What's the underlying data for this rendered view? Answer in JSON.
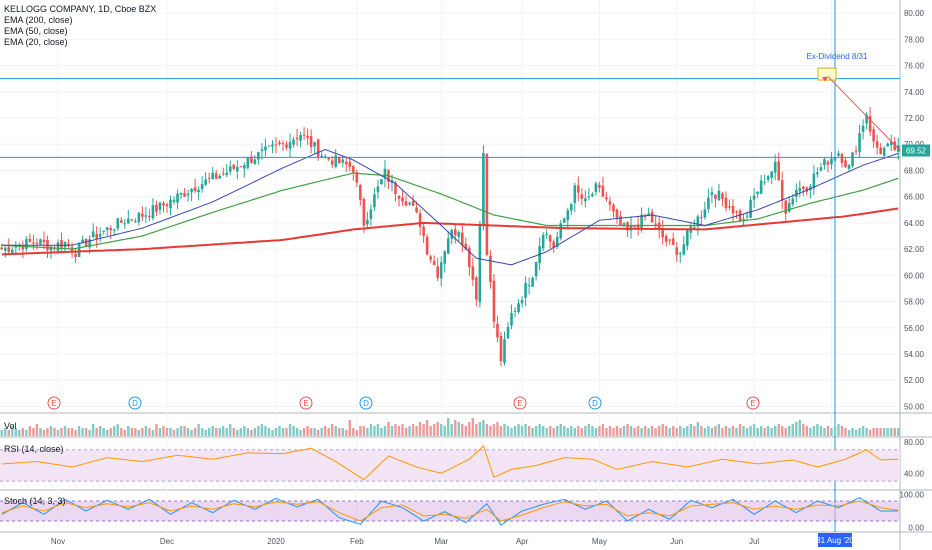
{
  "header": {
    "title": "KELLOGG COMPANY, 1D, Cboe BZX",
    "indicators": [
      "EMA (200, close)",
      "EMA (50, close)",
      "EMA (20, close)"
    ]
  },
  "panes": {
    "volume_label": "Vol",
    "rsi_label": "RSI (14, close)",
    "stoch_label": "Stoch (14, 3, 3)"
  },
  "colors": {
    "up": "#26a69a",
    "down": "#ef5350",
    "ema200": "#e53935",
    "ema50": "#43a047",
    "ema20": "#3949ab",
    "hline": "#2196f3",
    "rsi": "#ff9800",
    "stoch_k": "#2196f3",
    "stoch_d": "#ff9800",
    "band": "#e1bee7"
  },
  "annotation": {
    "label": "Ex-Dividend 8/31",
    "date_badge": "31 Aug '20",
    "target_price": 75.2
  },
  "last_price_label": "69.52",
  "events": [
    {
      "type": "E",
      "month": "Oct"
    },
    {
      "type": "D",
      "month": "Nov"
    },
    {
      "type": "E",
      "month": "Jan"
    },
    {
      "type": "D",
      "month": "Feb"
    },
    {
      "type": "E",
      "month": "Apr"
    },
    {
      "type": "D",
      "month": "May"
    },
    {
      "type": "E",
      "month": "Jul"
    }
  ],
  "chart_data": {
    "type": "candlestick",
    "title": "KELLOGG COMPANY, 1D, Cboe BZX",
    "x_ticks": [
      "Nov",
      "Dec",
      "2020",
      "Feb",
      "Mar",
      "Apr",
      "May",
      "Jun",
      "Jul",
      "Aug"
    ],
    "y_ticks": [
      "80.00",
      "78.00",
      "76.00",
      "74.00",
      "72.00",
      "70.00",
      "68.00",
      "66.00",
      "64.00",
      "62.00",
      "60.00",
      "58.00",
      "56.00",
      "54.00",
      "52.00",
      "50.00"
    ],
    "ylim": [
      49.5,
      81
    ],
    "horizontal_lines": [
      75.0,
      69.0
    ],
    "close_series": [
      [
        0,
        62.0
      ],
      [
        5,
        62.3
      ],
      [
        10,
        62.6
      ],
      [
        14,
        62.2
      ],
      [
        18,
        62.5
      ],
      [
        21,
        61.8
      ],
      [
        25,
        62.8
      ],
      [
        30,
        63.5
      ],
      [
        35,
        64.2
      ],
      [
        40,
        64.6
      ],
      [
        45,
        65.2
      ],
      [
        50,
        66.0
      ],
      [
        55,
        66.8
      ],
      [
        60,
        67.4
      ],
      [
        65,
        68.0
      ],
      [
        70,
        68.8
      ],
      [
        75,
        69.4
      ],
      [
        80,
        70.0
      ],
      [
        85,
        70.8
      ],
      [
        88,
        70.0
      ],
      [
        92,
        69.0
      ],
      [
        96,
        68.6
      ],
      [
        100,
        68.2
      ],
      [
        103,
        64.0
      ],
      [
        106,
        66.0
      ],
      [
        109,
        67.8
      ],
      [
        112,
        66.5
      ],
      [
        116,
        65.5
      ],
      [
        119,
        64.0
      ],
      [
        121,
        62.0
      ],
      [
        124,
        60.2
      ],
      [
        127,
        63.0
      ],
      [
        130,
        63.6
      ],
      [
        133,
        61.0
      ],
      [
        135,
        58.5
      ],
      [
        137,
        69.4
      ],
      [
        138,
        62.0
      ],
      [
        140,
        56.5
      ],
      [
        142,
        53.6
      ],
      [
        145,
        57.0
      ],
      [
        148,
        58.5
      ],
      [
        151,
        60.2
      ],
      [
        154,
        63.5
      ],
      [
        157,
        62.2
      ],
      [
        160,
        64.3
      ],
      [
        163,
        66.5
      ],
      [
        166,
        65.5
      ],
      [
        169,
        66.6
      ],
      [
        172,
        65.8
      ],
      [
        175,
        64.0
      ],
      [
        178,
        63.3
      ],
      [
        181,
        64.0
      ],
      [
        184,
        64.6
      ],
      [
        187,
        63.2
      ],
      [
        190,
        62.3
      ],
      [
        193,
        61.8
      ],
      [
        196,
        63.6
      ],
      [
        199,
        64.7
      ],
      [
        202,
        66.5
      ],
      [
        205,
        65.8
      ],
      [
        208,
        65.0
      ],
      [
        211,
        64.1
      ],
      [
        214,
        66.0
      ],
      [
        217,
        67.4
      ],
      [
        220,
        68.3
      ],
      [
        223,
        65.0
      ],
      [
        226,
        66.6
      ],
      [
        229,
        66.8
      ],
      [
        232,
        67.9
      ],
      [
        235,
        68.8
      ],
      [
        238,
        69.4
      ],
      [
        241,
        68.2
      ],
      [
        244,
        70.8
      ],
      [
        246,
        72.4
      ],
      [
        248,
        70.0
      ],
      [
        250,
        69.5
      ],
      [
        253,
        69.8
      ],
      [
        255,
        69.52
      ]
    ],
    "ema200": [
      [
        0,
        61.6
      ],
      [
        40,
        62.0
      ],
      [
        80,
        62.7
      ],
      [
        100,
        63.5
      ],
      [
        120,
        64.0
      ],
      [
        160,
        63.6
      ],
      [
        200,
        63.5
      ],
      [
        240,
        64.5
      ],
      [
        255,
        65.1
      ]
    ],
    "ema50": [
      [
        0,
        62.3
      ],
      [
        20,
        62.0
      ],
      [
        40,
        63.0
      ],
      [
        60,
        64.8
      ],
      [
        80,
        66.5
      ],
      [
        100,
        67.8
      ],
      [
        110,
        67.6
      ],
      [
        125,
        66.2
      ],
      [
        140,
        64.6
      ],
      [
        155,
        63.8
      ],
      [
        175,
        63.8
      ],
      [
        200,
        63.8
      ],
      [
        215,
        64.3
      ],
      [
        230,
        65.5
      ],
      [
        245,
        66.5
      ],
      [
        255,
        67.4
      ]
    ],
    "ema20": [
      [
        0,
        62.3
      ],
      [
        20,
        62.3
      ],
      [
        40,
        63.6
      ],
      [
        60,
        65.6
      ],
      [
        80,
        68.2
      ],
      [
        92,
        69.6
      ],
      [
        100,
        68.8
      ],
      [
        112,
        67.0
      ],
      [
        125,
        63.8
      ],
      [
        135,
        61.3
      ],
      [
        145,
        60.8
      ],
      [
        155,
        61.8
      ],
      [
        170,
        64.2
      ],
      [
        185,
        64.6
      ],
      [
        200,
        63.8
      ],
      [
        215,
        65.0
      ],
      [
        230,
        66.6
      ],
      [
        245,
        68.4
      ],
      [
        255,
        69.3
      ]
    ],
    "volume": [
      3,
      4,
      3,
      5,
      4,
      3,
      4,
      3,
      5,
      4,
      6,
      4,
      3,
      4,
      5,
      4,
      3,
      4,
      5,
      4,
      4,
      3,
      5,
      4,
      4,
      3,
      6,
      4,
      5,
      4,
      3,
      4,
      5,
      6,
      4,
      3,
      5,
      4,
      4,
      3,
      4,
      5,
      4,
      3,
      6,
      4,
      5,
      4,
      4,
      3,
      4,
      5,
      5,
      4,
      3,
      4,
      6,
      4,
      3,
      4,
      5,
      4,
      4,
      5,
      4,
      6,
      4,
      3,
      4,
      5,
      4,
      3,
      4,
      5,
      6,
      5,
      4,
      3,
      4,
      5,
      4,
      4,
      6,
      5,
      4,
      3,
      4,
      5,
      4,
      4,
      3,
      4,
      5,
      4,
      6,
      5,
      4,
      4,
      3,
      8,
      4,
      3,
      5,
      5,
      4,
      6,
      5,
      6,
      4,
      5,
      7,
      5,
      6,
      5,
      6,
      4,
      5,
      6,
      5,
      7,
      6,
      8,
      5,
      6,
      7,
      6,
      5,
      9,
      6,
      8,
      7,
      6,
      5,
      7,
      9,
      6,
      7,
      8,
      6,
      5,
      6,
      7,
      5,
      6,
      5,
      4,
      5,
      6,
      5,
      6,
      5,
      4,
      5,
      6,
      5,
      4,
      5,
      4,
      5,
      6,
      5,
      4,
      5,
      4,
      5,
      4,
      5,
      6,
      5,
      4,
      5,
      6,
      4,
      5,
      4,
      5,
      4,
      5,
      6,
      5,
      4,
      5,
      4,
      5,
      4,
      5,
      4,
      5,
      6,
      5,
      4,
      5,
      4,
      5,
      4,
      5,
      6,
      5,
      7,
      5,
      4,
      5,
      4,
      5,
      6,
      4,
      5,
      4,
      5,
      4,
      6,
      5,
      4,
      5,
      6,
      4,
      5,
      4,
      5,
      4,
      5,
      6,
      5,
      4,
      5,
      6,
      7,
      8,
      6,
      5,
      4,
      5,
      6,
      5,
      4,
      5,
      4,
      5,
      6,
      5,
      4,
      3,
      4,
      3,
      4,
      5,
      4,
      3,
      4
    ],
    "rsi": {
      "ticks": [
        "80.00",
        "40.00"
      ],
      "ylim": [
        20,
        85
      ],
      "series": [
        [
          0,
          52
        ],
        [
          10,
          55
        ],
        [
          20,
          48
        ],
        [
          30,
          60
        ],
        [
          40,
          55
        ],
        [
          50,
          63
        ],
        [
          60,
          58
        ],
        [
          70,
          66
        ],
        [
          80,
          65
        ],
        [
          88,
          72
        ],
        [
          95,
          55
        ],
        [
          103,
          32
        ],
        [
          110,
          62
        ],
        [
          118,
          48
        ],
        [
          125,
          40
        ],
        [
          133,
          58
        ],
        [
          137,
          75
        ],
        [
          140,
          35
        ],
        [
          145,
          45
        ],
        [
          152,
          50
        ],
        [
          160,
          60
        ],
        [
          168,
          58
        ],
        [
          175,
          45
        ],
        [
          185,
          55
        ],
        [
          195,
          48
        ],
        [
          205,
          58
        ],
        [
          215,
          52
        ],
        [
          225,
          57
        ],
        [
          232,
          48
        ],
        [
          240,
          58
        ],
        [
          246,
          70
        ],
        [
          250,
          57
        ],
        [
          255,
          58
        ]
      ]
    },
    "stoch": {
      "ticks": [
        "100.00",
        "0.00"
      ],
      "ylim": [
        -10,
        110
      ],
      "k": [
        [
          0,
          40
        ],
        [
          6,
          75
        ],
        [
          12,
          40
        ],
        [
          18,
          85
        ],
        [
          24,
          50
        ],
        [
          30,
          82
        ],
        [
          36,
          55
        ],
        [
          42,
          85
        ],
        [
          48,
          40
        ],
        [
          54,
          75
        ],
        [
          60,
          45
        ],
        [
          66,
          82
        ],
        [
          72,
          55
        ],
        [
          78,
          88
        ],
        [
          84,
          62
        ],
        [
          90,
          85
        ],
        [
          96,
          30
        ],
        [
          102,
          10
        ],
        [
          108,
          80
        ],
        [
          114,
          60
        ],
        [
          120,
          20
        ],
        [
          126,
          48
        ],
        [
          132,
          15
        ],
        [
          138,
          72
        ],
        [
          142,
          8
        ],
        [
          148,
          50
        ],
        [
          154,
          70
        ],
        [
          160,
          85
        ],
        [
          166,
          55
        ],
        [
          172,
          80
        ],
        [
          178,
          20
        ],
        [
          184,
          55
        ],
        [
          190,
          25
        ],
        [
          196,
          82
        ],
        [
          202,
          60
        ],
        [
          208,
          85
        ],
        [
          214,
          40
        ],
        [
          220,
          80
        ],
        [
          226,
          45
        ],
        [
          232,
          80
        ],
        [
          238,
          60
        ],
        [
          244,
          90
        ],
        [
          250,
          50
        ],
        [
          255,
          50
        ]
      ],
      "d": [
        [
          0,
          45
        ],
        [
          6,
          65
        ],
        [
          12,
          50
        ],
        [
          18,
          75
        ],
        [
          24,
          60
        ],
        [
          30,
          72
        ],
        [
          36,
          62
        ],
        [
          42,
          75
        ],
        [
          48,
          50
        ],
        [
          54,
          65
        ],
        [
          60,
          55
        ],
        [
          66,
          72
        ],
        [
          72,
          62
        ],
        [
          78,
          78
        ],
        [
          84,
          70
        ],
        [
          90,
          78
        ],
        [
          96,
          45
        ],
        [
          102,
          20
        ],
        [
          108,
          60
        ],
        [
          114,
          68
        ],
        [
          120,
          35
        ],
        [
          126,
          40
        ],
        [
          132,
          28
        ],
        [
          138,
          55
        ],
        [
          142,
          20
        ],
        [
          148,
          38
        ],
        [
          154,
          60
        ],
        [
          160,
          78
        ],
        [
          166,
          65
        ],
        [
          172,
          70
        ],
        [
          178,
          35
        ],
        [
          184,
          45
        ],
        [
          190,
          35
        ],
        [
          196,
          65
        ],
        [
          202,
          70
        ],
        [
          208,
          75
        ],
        [
          214,
          55
        ],
        [
          220,
          65
        ],
        [
          226,
          55
        ],
        [
          232,
          68
        ],
        [
          238,
          65
        ],
        [
          244,
          80
        ],
        [
          250,
          60
        ],
        [
          255,
          52
        ]
      ]
    }
  }
}
